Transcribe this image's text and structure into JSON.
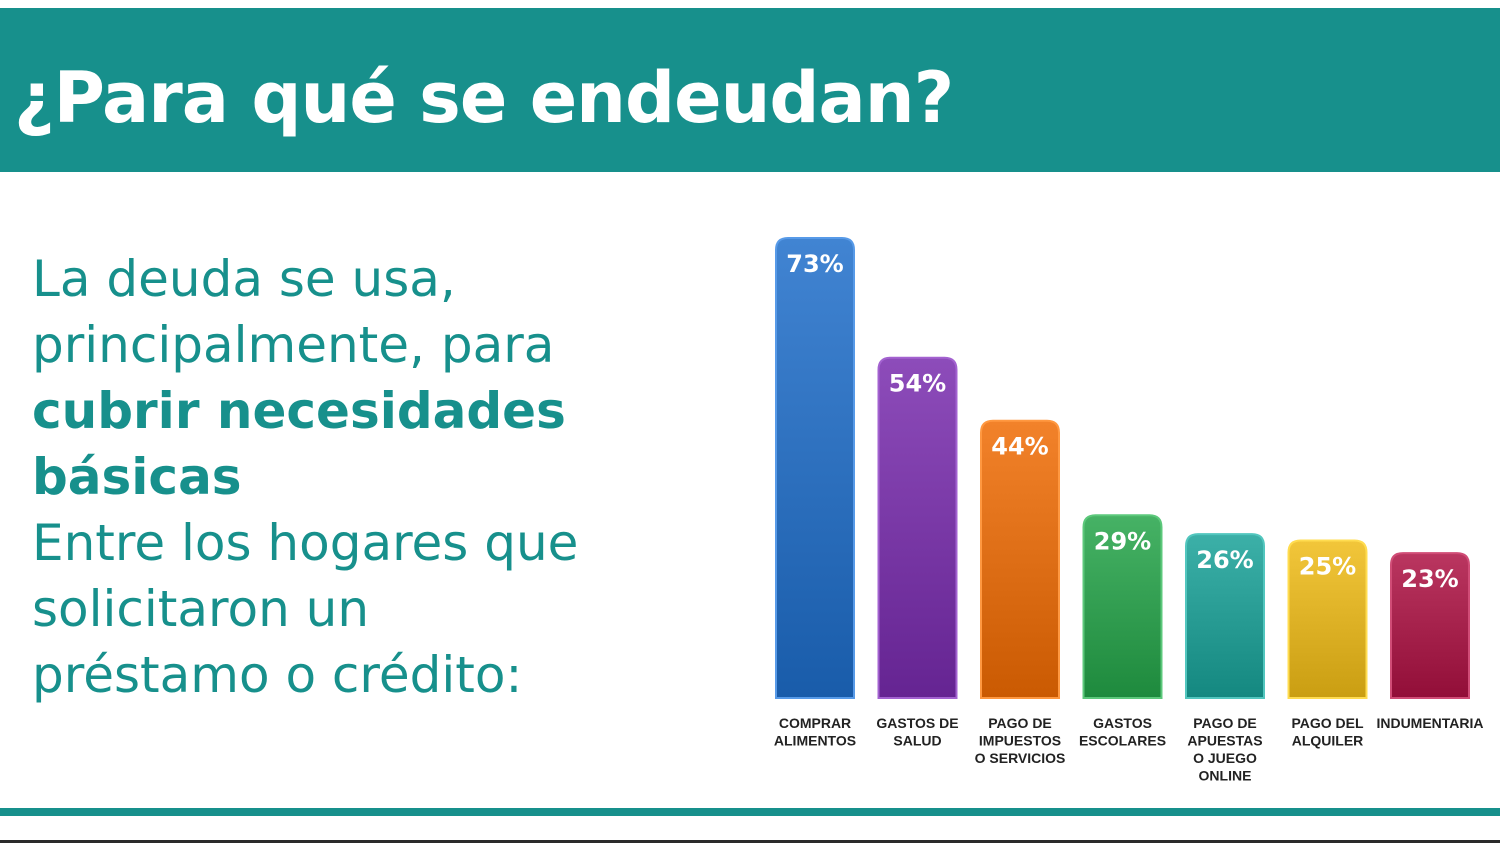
{
  "header": {
    "title": "¿Para qué se endeudan?"
  },
  "left_text": {
    "line1": "La deuda se usa,",
    "line2": "principalmente, para",
    "line3": "cubrir necesidades",
    "line4": "básicas",
    "line5": "Entre los hogares que",
    "line6": "solicitaron un",
    "line7": "préstamo o crédito:"
  },
  "colors": {
    "accent": "#17908c",
    "bar_colors": [
      "#2f72c0",
      "#7b3aa8",
      "#e07018",
      "#34a053",
      "#2a9e96",
      "#e0b428",
      "#a8244e"
    ]
  },
  "chart_data": {
    "type": "bar",
    "categories": [
      [
        "COMPRAR",
        "ALIMENTOS"
      ],
      [
        "GASTOS DE",
        "SALUD"
      ],
      [
        "PAGO DE",
        "IMPUESTOS",
        "O SERVICIOS"
      ],
      [
        "GASTOS",
        "ESCOLARES"
      ],
      [
        "PAGO DE",
        "APUESTAS",
        "O JUEGO",
        "ONLINE"
      ],
      [
        "PAGO DEL",
        "ALQUILER"
      ],
      [
        "INDUMENTARIA"
      ]
    ],
    "values": [
      73,
      54,
      44,
      29,
      26,
      25,
      23
    ],
    "value_labels": [
      "73%",
      "54%",
      "44%",
      "29%",
      "26%",
      "25%",
      "23%"
    ],
    "ylim": [
      0,
      73
    ],
    "grid": false,
    "legend": "none"
  }
}
